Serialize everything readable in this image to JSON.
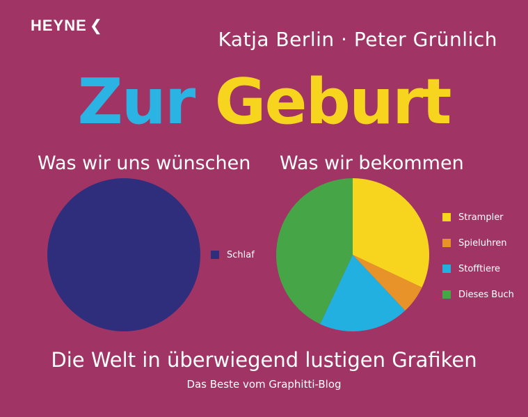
{
  "publisher": {
    "name": "HEYNE",
    "mark": "❮"
  },
  "authors": "Katja Berlin · Peter Grünlich",
  "title": {
    "word1": "Zur",
    "word2": "Geburt"
  },
  "subtitle": "Die Welt in überwiegend lustigen Grafiken",
  "tagline": "Das Beste vom Graphitti-Blog",
  "colors": {
    "background": "#A03565",
    "title_word1": "#2BB3E3",
    "title_word2": "#F7D51E"
  },
  "chart_data": [
    {
      "type": "pie",
      "title": "Was wir uns wünschen",
      "categories": [
        "Schlaf"
      ],
      "values": [
        100
      ],
      "colors": [
        "#2E2E7C"
      ],
      "legend": "right"
    },
    {
      "type": "pie",
      "title": "Was wir bekommen",
      "categories": [
        "Strampler",
        "Spieluhren",
        "Stofftiere",
        "Dieses Buch"
      ],
      "values": [
        32,
        6,
        19,
        43
      ],
      "colors": [
        "#F7D51E",
        "#E8922A",
        "#22B0E0",
        "#46A647"
      ],
      "legend": "right"
    }
  ]
}
